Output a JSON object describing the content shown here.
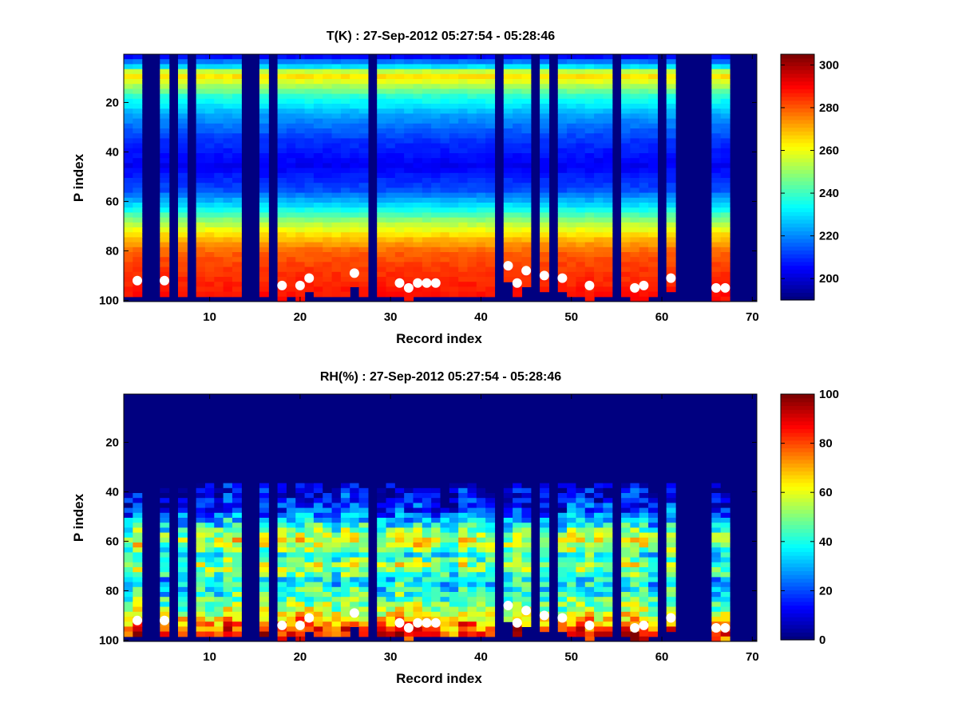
{
  "chart_data": [
    {
      "type": "heatmap",
      "title": "T(K) : 27-Sep-2012 05:27:54 - 05:28:46",
      "xlabel": "Record index",
      "ylabel": "P index",
      "xlim": [
        1,
        70
      ],
      "ylim": [
        1,
        100
      ],
      "y_reversed": true,
      "xticks": [
        10,
        20,
        30,
        40,
        50,
        60,
        70
      ],
      "yticks": [
        20,
        40,
        60,
        80,
        100
      ],
      "colormap": "jet",
      "colorbar": {
        "range": [
          190,
          305
        ],
        "ticks": [
          200,
          220,
          240,
          260,
          280,
          300
        ]
      },
      "missing_records": [
        3,
        4,
        6,
        8,
        14,
        15,
        17,
        28,
        42,
        46,
        48,
        55,
        60,
        62,
        63,
        64,
        65,
        68,
        69,
        70
      ],
      "profile": {
        "p_index": [
          1,
          5,
          8,
          12,
          17,
          25,
          35,
          45,
          55,
          62,
          68,
          74,
          80,
          88,
          100
        ],
        "value": [
          205,
          230,
          268,
          255,
          238,
          222,
          210,
          203,
          213,
          232,
          252,
          268,
          280,
          285,
          290
        ]
      },
      "surface_markers": {
        "record": [
          2,
          5,
          18,
          20,
          21,
          26,
          31,
          32,
          33,
          34,
          35,
          43,
          44,
          45,
          47,
          49,
          52,
          57,
          58,
          61,
          66,
          67
        ],
        "p_index": [
          92,
          92,
          94,
          94,
          91,
          89,
          93,
          95,
          93,
          93,
          93,
          86,
          93,
          88,
          90,
          91,
          94,
          95,
          94,
          91,
          95,
          95
        ]
      }
    },
    {
      "type": "heatmap",
      "title": "RH(%) : 27-Sep-2012 05:27:54 - 05:28:46",
      "xlabel": "Record index",
      "ylabel": "P index",
      "xlim": [
        1,
        70
      ],
      "ylim": [
        1,
        100
      ],
      "y_reversed": true,
      "xticks": [
        10,
        20,
        30,
        40,
        50,
        60,
        70
      ],
      "yticks": [
        20,
        40,
        60,
        80,
        100
      ],
      "colormap": "jet",
      "colorbar": {
        "range": [
          0,
          100
        ],
        "ticks": [
          0,
          20,
          40,
          60,
          80,
          100
        ]
      },
      "missing_records": [
        3,
        4,
        6,
        8,
        14,
        15,
        17,
        28,
        42,
        46,
        48,
        55,
        60,
        62,
        63,
        64,
        65,
        68,
        69,
        70
      ],
      "profile": {
        "p_index": [
          1,
          35,
          40,
          48,
          55,
          60,
          65,
          70,
          75,
          80,
          86,
          92,
          97,
          100
        ],
        "value": [
          0,
          0,
          8,
          18,
          45,
          60,
          40,
          55,
          35,
          40,
          50,
          70,
          85,
          85
        ]
      },
      "surface_markers": {
        "record": [
          2,
          5,
          18,
          20,
          21,
          26,
          31,
          32,
          33,
          34,
          35,
          43,
          44,
          45,
          47,
          49,
          52,
          57,
          58,
          61,
          66,
          67
        ],
        "p_index": [
          92,
          92,
          94,
          94,
          91,
          89,
          93,
          95,
          93,
          93,
          93,
          86,
          93,
          88,
          90,
          91,
          94,
          95,
          94,
          91,
          95,
          95
        ]
      }
    }
  ]
}
